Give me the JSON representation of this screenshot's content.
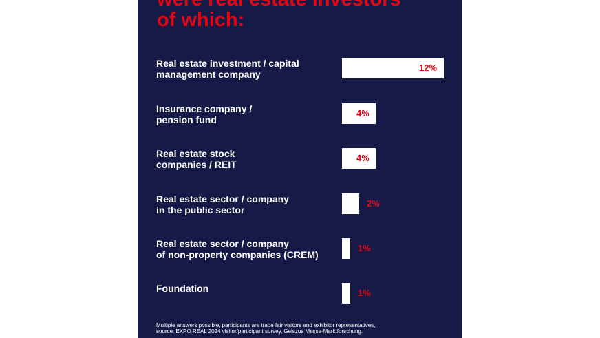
{
  "chart_data": {
    "type": "bar",
    "title": "were real estate investors\nof which:",
    "categories": [
      "Real estate investment / capital\nmanagement company",
      "Insurance company /\npension fund",
      "Real estate stock\ncompanies / REIT",
      "Real estate sector / company\nin the public sector",
      "Real estate sector / company\nof non-property companies (CREM)",
      "Foundation"
    ],
    "values": [
      12,
      4,
      4,
      2,
      1,
      1
    ],
    "value_labels": [
      "12%",
      "4%",
      "4%",
      "2%",
      "1%",
      "1%"
    ],
    "xlim": [
      0,
      12
    ],
    "grid": false
  },
  "footnote": "Multiple answers possible, participants are trade fair visitors and exhibitor representatives,\nsource: EXPO REAL 2024 visitor/participant survey, Gelszus Messe-Marktforschung.",
  "colors": {
    "background": "#151a46",
    "accent": "#e30613",
    "bar": "#ffffff"
  }
}
